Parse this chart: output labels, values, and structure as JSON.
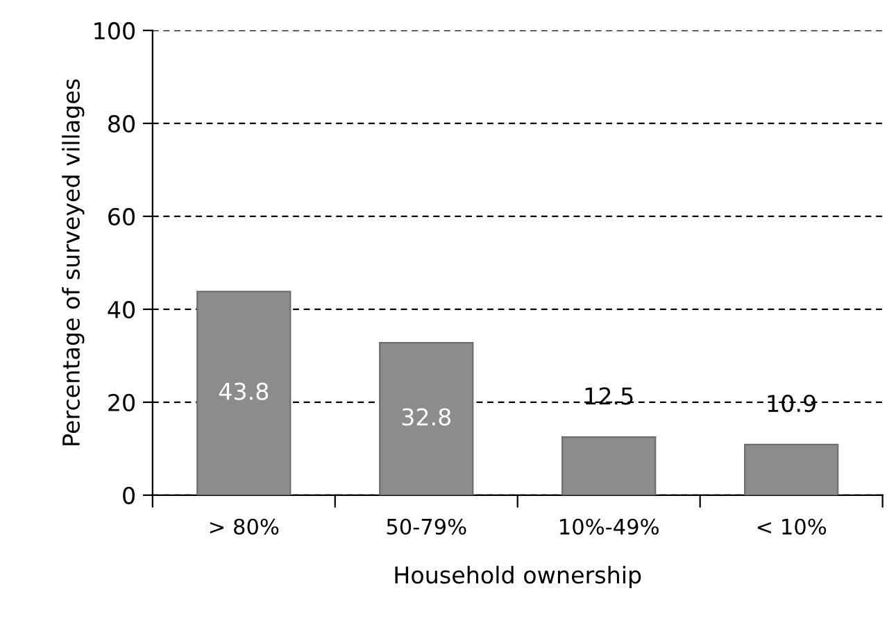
{
  "chart_data": {
    "type": "bar",
    "xlabel": "Household ownership",
    "ylabel": "Percentage of surveyed villages",
    "categories": [
      "> 80%",
      "50-79%",
      "10%-49%",
      "< 10%"
    ],
    "values": [
      43.8,
      32.8,
      12.5,
      10.9
    ],
    "color": "#8c8c8c",
    "ylim": [
      0,
      100
    ],
    "yticks": [
      0,
      20,
      40,
      60,
      80,
      100
    ],
    "grid": "y",
    "data_labels": true
  }
}
